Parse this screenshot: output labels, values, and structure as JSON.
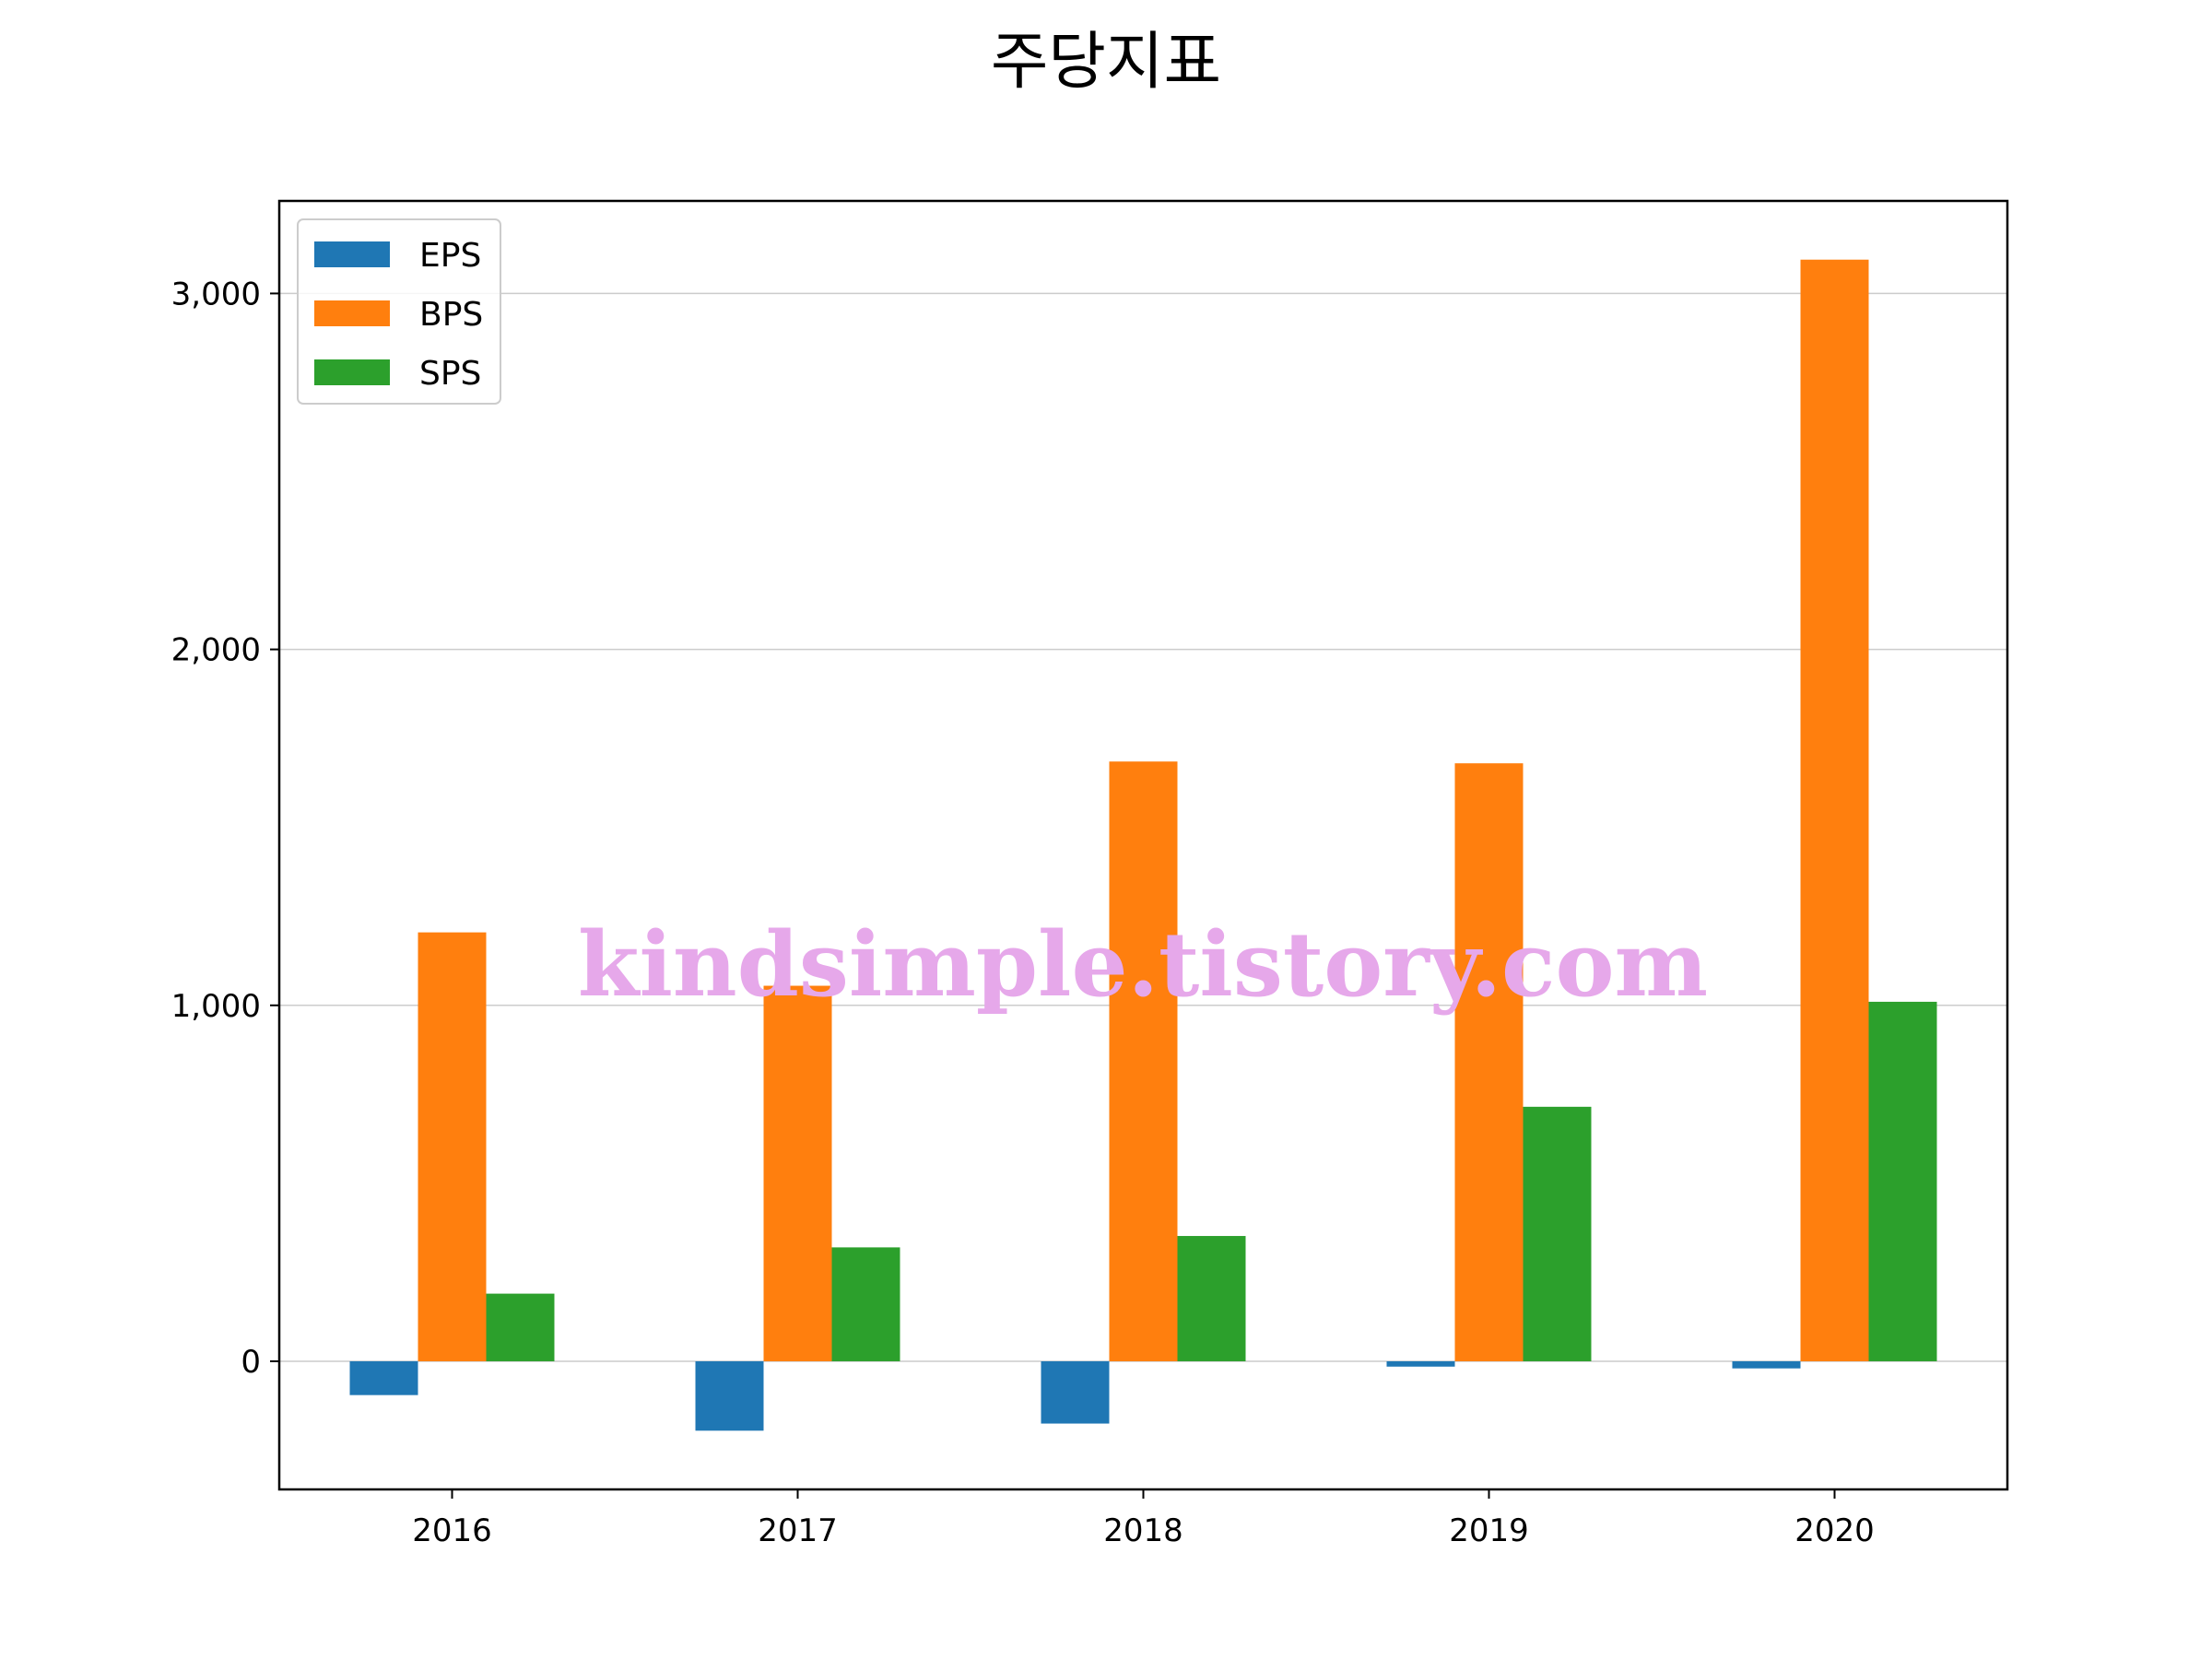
{
  "chart_data": {
    "type": "bar",
    "title": "주당지표",
    "xlabel": "",
    "ylabel": "",
    "categories": [
      "2016",
      "2017",
      "2018",
      "2019",
      "2020"
    ],
    "series": [
      {
        "name": "EPS",
        "values": [
          -95,
          -195,
          -175,
          -15,
          -20
        ],
        "color": "#1f77b4"
      },
      {
        "name": "BPS",
        "values": [
          1205,
          1055,
          1685,
          1680,
          3095
        ],
        "color": "#ff7f0e"
      },
      {
        "name": "SPS",
        "values": [
          190,
          320,
          352,
          715,
          1010
        ],
        "color": "#2ca02c"
      }
    ],
    "ylim": [
      -360,
      3260
    ],
    "yticks": [
      0,
      1000,
      2000,
      3000
    ],
    "ytick_labels": [
      "0",
      "1,000",
      "2,000",
      "3,000"
    ],
    "grid": "horizontal",
    "legend_position": "top-left",
    "watermark": "kindsimple.tistory.com"
  }
}
